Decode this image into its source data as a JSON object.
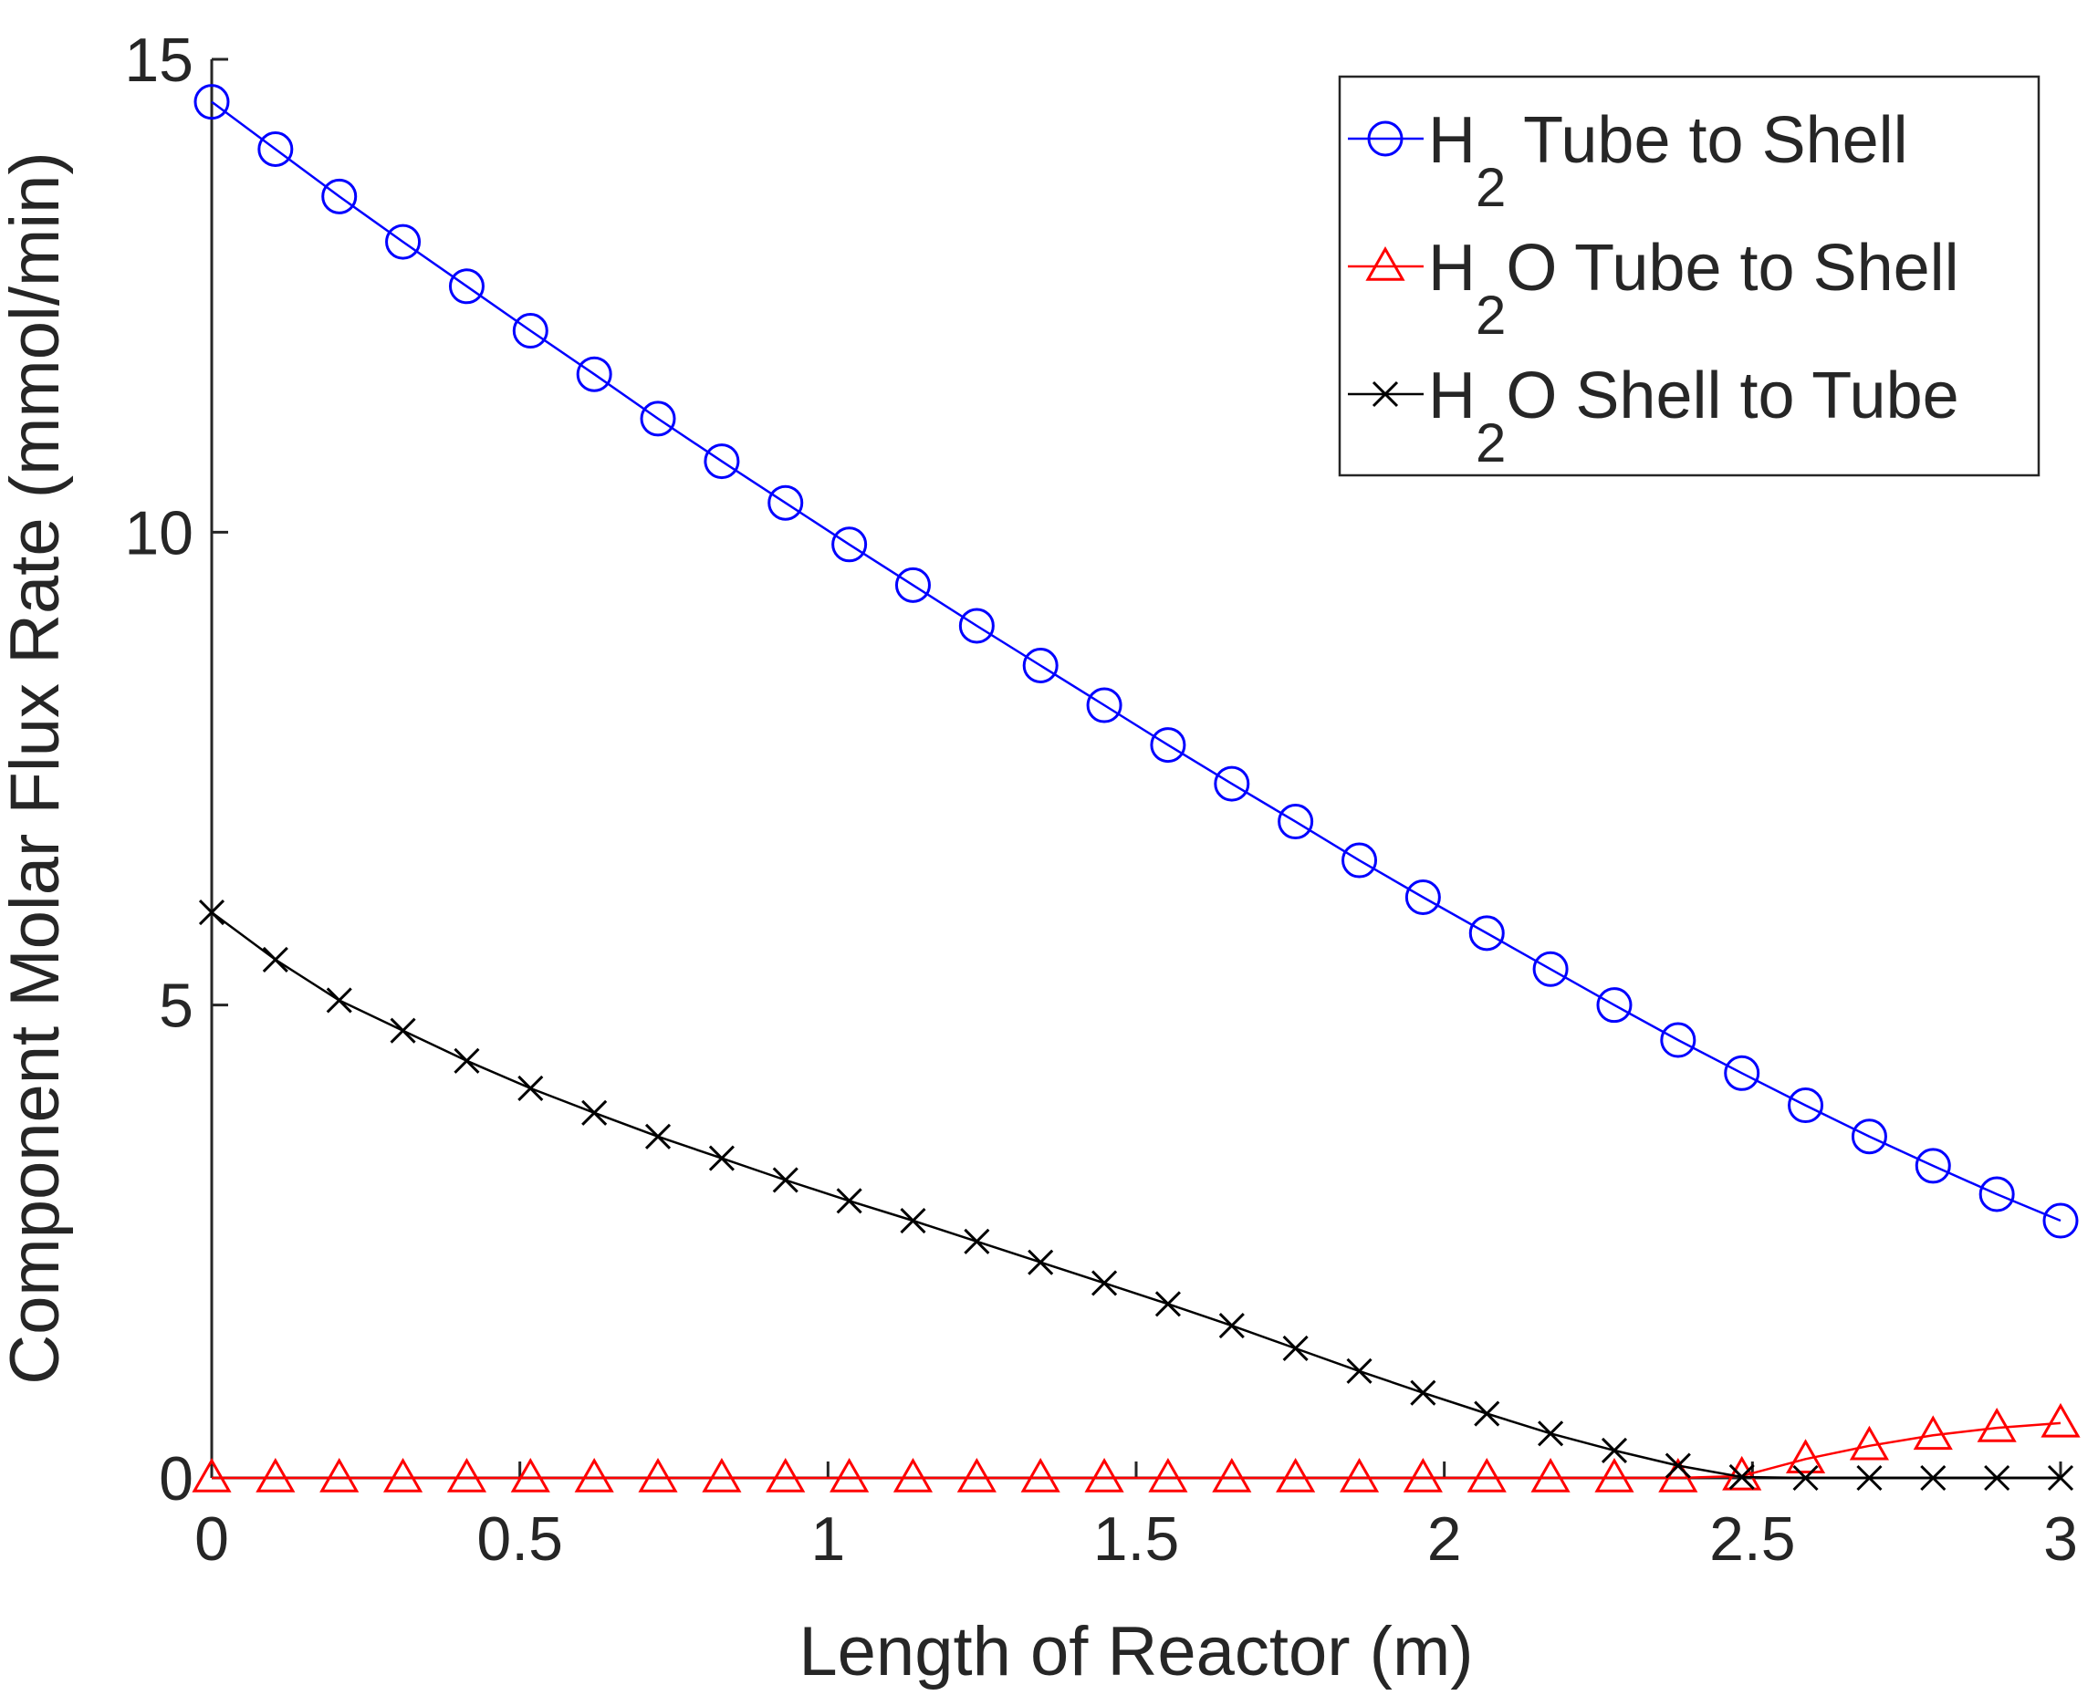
{
  "chart_data": {
    "type": "line",
    "xlabel": "Length of Reactor (m)",
    "ylabel": "Component Molar Flux Rate (mmol/min)",
    "xlim": [
      0,
      3
    ],
    "ylim": [
      0,
      15
    ],
    "xticks": [
      0,
      0.5,
      1,
      1.5,
      2,
      2.5,
      3
    ],
    "xtick_labels": [
      "0",
      "0.5",
      "1",
      "1.5",
      "2",
      "2.5",
      "3"
    ],
    "yticks": [
      0,
      5,
      10,
      15
    ],
    "ytick_labels": [
      "0",
      "5",
      "10",
      "15"
    ],
    "grid": false,
    "legend_position": "top-right",
    "x": [
      0,
      0.1034,
      0.2069,
      0.3103,
      0.4138,
      0.5172,
      0.6207,
      0.7241,
      0.8276,
      0.931,
      1.0345,
      1.1379,
      1.2414,
      1.3448,
      1.4483,
      1.5517,
      1.6552,
      1.7586,
      1.8621,
      1.9655,
      2.069,
      2.1724,
      2.2759,
      2.3793,
      2.4828,
      2.5862,
      2.6897,
      2.7931,
      2.8966,
      3.0
    ],
    "series": [
      {
        "name_main": "H",
        "name_sub": "2",
        "name_rest": " Tube to Shell",
        "color": "#0000ff",
        "marker": "circle",
        "values": [
          14.55,
          14.05,
          13.55,
          13.07,
          12.6,
          12.13,
          11.67,
          11.2,
          10.75,
          10.31,
          9.87,
          9.44,
          9.01,
          8.59,
          8.17,
          7.75,
          7.34,
          6.94,
          6.53,
          6.14,
          5.76,
          5.38,
          5.0,
          4.63,
          4.28,
          3.94,
          3.61,
          3.3,
          3.0,
          2.72
        ]
      },
      {
        "name_main": "H",
        "name_sub": "2",
        "name_rest": "O Tube to Shell",
        "color": "#ff0000",
        "marker": "triangle",
        "values": [
          0,
          0,
          0,
          0,
          0,
          0,
          0,
          0,
          0,
          0,
          0,
          0,
          0,
          0,
          0,
          0,
          0,
          0,
          0,
          0,
          0,
          0,
          0,
          0,
          0.02,
          0.2,
          0.34,
          0.45,
          0.53,
          0.58
        ]
      },
      {
        "name_main": "H",
        "name_sub": "2",
        "name_rest": "O Shell to Tube",
        "color": "#000000",
        "marker": "x",
        "values": [
          5.98,
          5.48,
          5.05,
          4.73,
          4.41,
          4.12,
          3.86,
          3.61,
          3.38,
          3.15,
          2.93,
          2.72,
          2.5,
          2.28,
          2.06,
          1.84,
          1.61,
          1.37,
          1.13,
          0.9,
          0.68,
          0.47,
          0.29,
          0.13,
          0.01,
          0,
          0,
          0,
          0,
          0
        ]
      }
    ]
  }
}
